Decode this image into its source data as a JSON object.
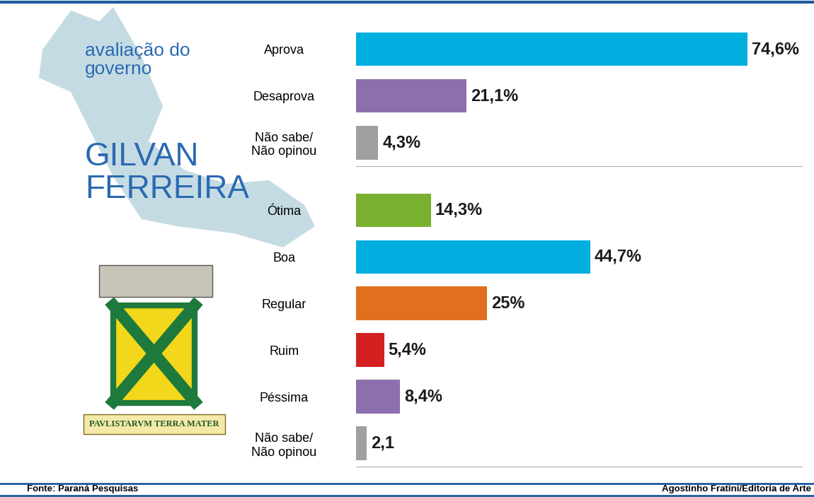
{
  "chart_data": [
    {
      "type": "bar",
      "orientation": "horizontal",
      "title": "GILVAN\nFERREIRA",
      "subtitle": "avaliação do\ngoverno",
      "annotations": [
        "PAVLISTARVM TERRA MATER",
        "Fonte: Paraná Pesquisas",
        "Agostinho Fratini/Editoria de Arte"
      ],
      "categories": [
        "Aprova",
        "Desaprova",
        "Não sabe/\nNão opinou"
      ],
      "values": [
        74.6,
        21.1,
        4.3
      ],
      "value_labels": [
        "74,6%",
        "21,1%",
        "4,3%"
      ],
      "colors": [
        "#00aedf",
        "#8e6fae",
        "#a0a0a0"
      ],
      "xlim": [
        0,
        85
      ],
      "data_labels": true,
      "tick_labels": "y"
    },
    {
      "type": "bar",
      "orientation": "horizontal",
      "categories": [
        "Ótima",
        "Boa",
        "Regular",
        "Ruim",
        "Péssima",
        "Não sabe/\nNão opinou"
      ],
      "values": [
        14.3,
        44.7,
        25,
        5.4,
        8.4,
        2.1
      ],
      "value_labels": [
        "14,3%",
        "44,7%",
        "25%",
        "5,4%",
        "8,4%",
        "2,1"
      ],
      "colors": [
        "#7ab030",
        "#00aedf",
        "#e07020",
        "#d42020",
        "#8e6fae",
        "#a0a0a0"
      ],
      "xlim": [
        0,
        85
      ],
      "data_labels": true,
      "tick_labels": "y"
    }
  ]
}
